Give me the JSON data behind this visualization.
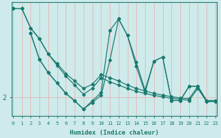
{
  "xlabel": "Humidex (Indice chaleur)",
  "ylabel": "",
  "bg_color": "#ceeaea",
  "line_color": "#1a7a6e",
  "grid_color": "#e8b4b4",
  "axis_color": "#1a7a6e",
  "x_min": 0,
  "x_max": 23,
  "y_min": 1.55,
  "y_max": 4.3,
  "y_tick_val": 2.0,
  "lines": [
    {
      "x": [
        0,
        1,
        2,
        3,
        4,
        5,
        6,
        7,
        8,
        9,
        10,
        11,
        12,
        13,
        14,
        15,
        16,
        17,
        18,
        19,
        20,
        21,
        22,
        23
      ],
      "y": [
        4.15,
        4.15,
        3.68,
        3.42,
        3.05,
        2.82,
        2.58,
        2.4,
        2.22,
        2.32,
        2.55,
        2.48,
        2.4,
        2.3,
        2.22,
        2.16,
        2.1,
        2.06,
        2.02,
        1.99,
        1.97,
        2.27,
        1.93,
        1.93
      ]
    },
    {
      "x": [
        0,
        1,
        2,
        3,
        4,
        5,
        6,
        7,
        8,
        9,
        10,
        11,
        12,
        13,
        14,
        15,
        16,
        17,
        18,
        19,
        20,
        21,
        22,
        23
      ],
      "y": [
        4.15,
        4.15,
        3.68,
        3.42,
        3.05,
        2.78,
        2.52,
        2.3,
        2.08,
        2.22,
        2.48,
        2.38,
        2.3,
        2.22,
        2.15,
        2.1,
        2.05,
        2.02,
        1.98,
        1.96,
        1.93,
        2.22,
        1.9,
        1.9
      ]
    },
    {
      "x": [
        2,
        3,
        4,
        5,
        6,
        7,
        8,
        9,
        10,
        11,
        12,
        13,
        14,
        15,
        16,
        17,
        18,
        19,
        20,
        21,
        22,
        23
      ],
      "y": [
        3.55,
        2.92,
        2.6,
        2.35,
        2.1,
        1.92,
        1.72,
        1.92,
        2.12,
        3.62,
        3.9,
        3.5,
        2.75,
        2.12,
        2.88,
        2.98,
        1.93,
        1.93,
        2.27,
        2.27,
        1.9,
        1.9
      ]
    },
    {
      "x": [
        2,
        3,
        4,
        5,
        6,
        7,
        8,
        9,
        10,
        11,
        12,
        13,
        14,
        15,
        16,
        17,
        18,
        19,
        20,
        21,
        22,
        23
      ],
      "y": [
        3.55,
        2.92,
        2.6,
        2.35,
        2.1,
        1.92,
        1.72,
        1.88,
        2.05,
        2.9,
        3.9,
        3.5,
        2.85,
        2.18,
        2.88,
        2.98,
        1.93,
        1.93,
        2.27,
        2.27,
        1.9,
        1.9
      ]
    }
  ]
}
